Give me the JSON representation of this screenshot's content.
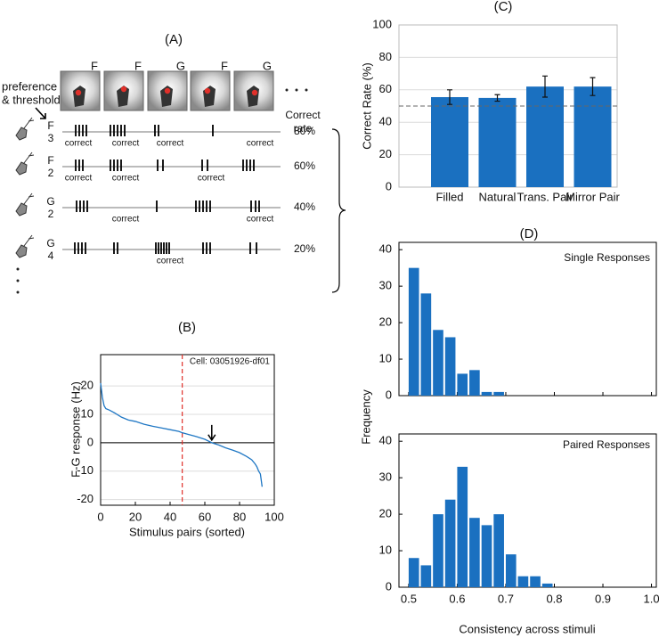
{
  "panel_a": {
    "title": "(A)",
    "side_label": [
      "preference",
      "& threshold"
    ],
    "rate_header": [
      "Correct",
      "rate"
    ],
    "stimuli": [
      {
        "label": "F",
        "color": "#e0302a"
      },
      {
        "label": "F",
        "color": "#e0302a"
      },
      {
        "label": "G",
        "color": "#2a44d8"
      },
      {
        "label": "F",
        "color": "#e0302a"
      },
      {
        "label": "G",
        "color": "#2a44d8"
      }
    ],
    "rows": [
      {
        "preference": "F",
        "threshold": "3",
        "correct": [
          "correct",
          "correct",
          "correct",
          null,
          "correct"
        ],
        "rate": "80%"
      },
      {
        "preference": "F",
        "threshold": "2",
        "correct": [
          "correct",
          "correct",
          null,
          "correct",
          null
        ],
        "rate": "60%"
      },
      {
        "preference": "G",
        "threshold": "2",
        "correct": [
          null,
          "correct",
          null,
          null,
          "correct"
        ],
        "rate": "40%"
      },
      {
        "preference": "G",
        "threshold": "4",
        "correct": [
          null,
          null,
          "correct",
          null,
          null
        ],
        "rate": "20%"
      }
    ]
  },
  "chart_data": [
    {
      "type": "line",
      "title": "(B)",
      "xlabel": "Stimulus pairs (sorted)",
      "ylabel": "F-G response (Hz)",
      "annotation": "Cell: 03051926-df01",
      "x": [
        0,
        1,
        2,
        3,
        5,
        8,
        12,
        16,
        20,
        25,
        30,
        35,
        40,
        45,
        47,
        50,
        55,
        60,
        64,
        68,
        72,
        76,
        80,
        84,
        87,
        89,
        90,
        91,
        92,
        93
      ],
      "values": [
        21,
        16,
        13,
        12,
        11.5,
        10.5,
        9,
        8,
        7.5,
        6.5,
        5.8,
        5.2,
        4.6,
        4,
        3.5,
        3,
        2.2,
        1.2,
        0,
        -0.8,
        -1.8,
        -2.6,
        -3.5,
        -4.8,
        -6,
        -7.5,
        -8.5,
        -10,
        -11,
        -15.5
      ],
      "color": "#1f77c4",
      "xlim": [
        0,
        100
      ],
      "xticks": [
        0,
        20,
        40,
        60,
        80,
        100
      ],
      "ylim": [
        -22,
        31
      ],
      "yticks": [
        -20,
        -10,
        0,
        10,
        20
      ],
      "grid": true,
      "reference_line_x": 47,
      "reference_color": "#e0302a",
      "arrow_x": 64
    },
    {
      "type": "bar",
      "title": "(C)",
      "ylabel": "Correct Rate (%)",
      "categories": [
        "Filled",
        "Natural",
        "Trans. Pair",
        "Mirror Pair"
      ],
      "values": [
        55.5,
        55,
        62,
        62
      ],
      "errors": [
        4.5,
        2,
        6.5,
        5.5
      ],
      "color": "#1a70c0",
      "ylim": [
        0,
        100
      ],
      "yticks": [
        0,
        20,
        40,
        60,
        80,
        100
      ],
      "grid": true,
      "reference_line_y": 50
    },
    {
      "type": "histogram",
      "title": "(D)",
      "annotation": "Single Responses",
      "bins": [
        0.5,
        0.525,
        0.55,
        0.575,
        0.6,
        0.625,
        0.65,
        0.675,
        0.7
      ],
      "values": [
        35,
        28,
        18,
        16,
        6,
        7,
        1,
        1
      ],
      "color": "#1a70c0",
      "xlim": [
        0.48,
        1.01
      ],
      "xticks": [
        0.5,
        0.6,
        0.7,
        0.8,
        0.9,
        1
      ],
      "ylim": [
        0,
        42
      ],
      "yticks": [
        0,
        10,
        20,
        30,
        40
      ]
    },
    {
      "type": "histogram",
      "annotation": "Paired Responses",
      "xlabel": "Consistency across stimuli",
      "ylabel": "Frequency",
      "bins": [
        0.5,
        0.525,
        0.55,
        0.575,
        0.6,
        0.625,
        0.65,
        0.675,
        0.7,
        0.725,
        0.75,
        0.775,
        0.8
      ],
      "values": [
        8,
        6,
        20,
        24,
        33,
        19,
        17,
        20,
        9,
        3,
        3,
        1
      ],
      "color": "#1a70c0",
      "xlim": [
        0.48,
        1.01
      ],
      "xticks": [
        0.5,
        0.6,
        0.7,
        0.8,
        0.9,
        {
          "value": 1,
          "label": "1.0"
        }
      ],
      "ylim": [
        0,
        42
      ],
      "yticks": [
        0,
        10,
        20,
        30,
        40
      ]
    }
  ]
}
